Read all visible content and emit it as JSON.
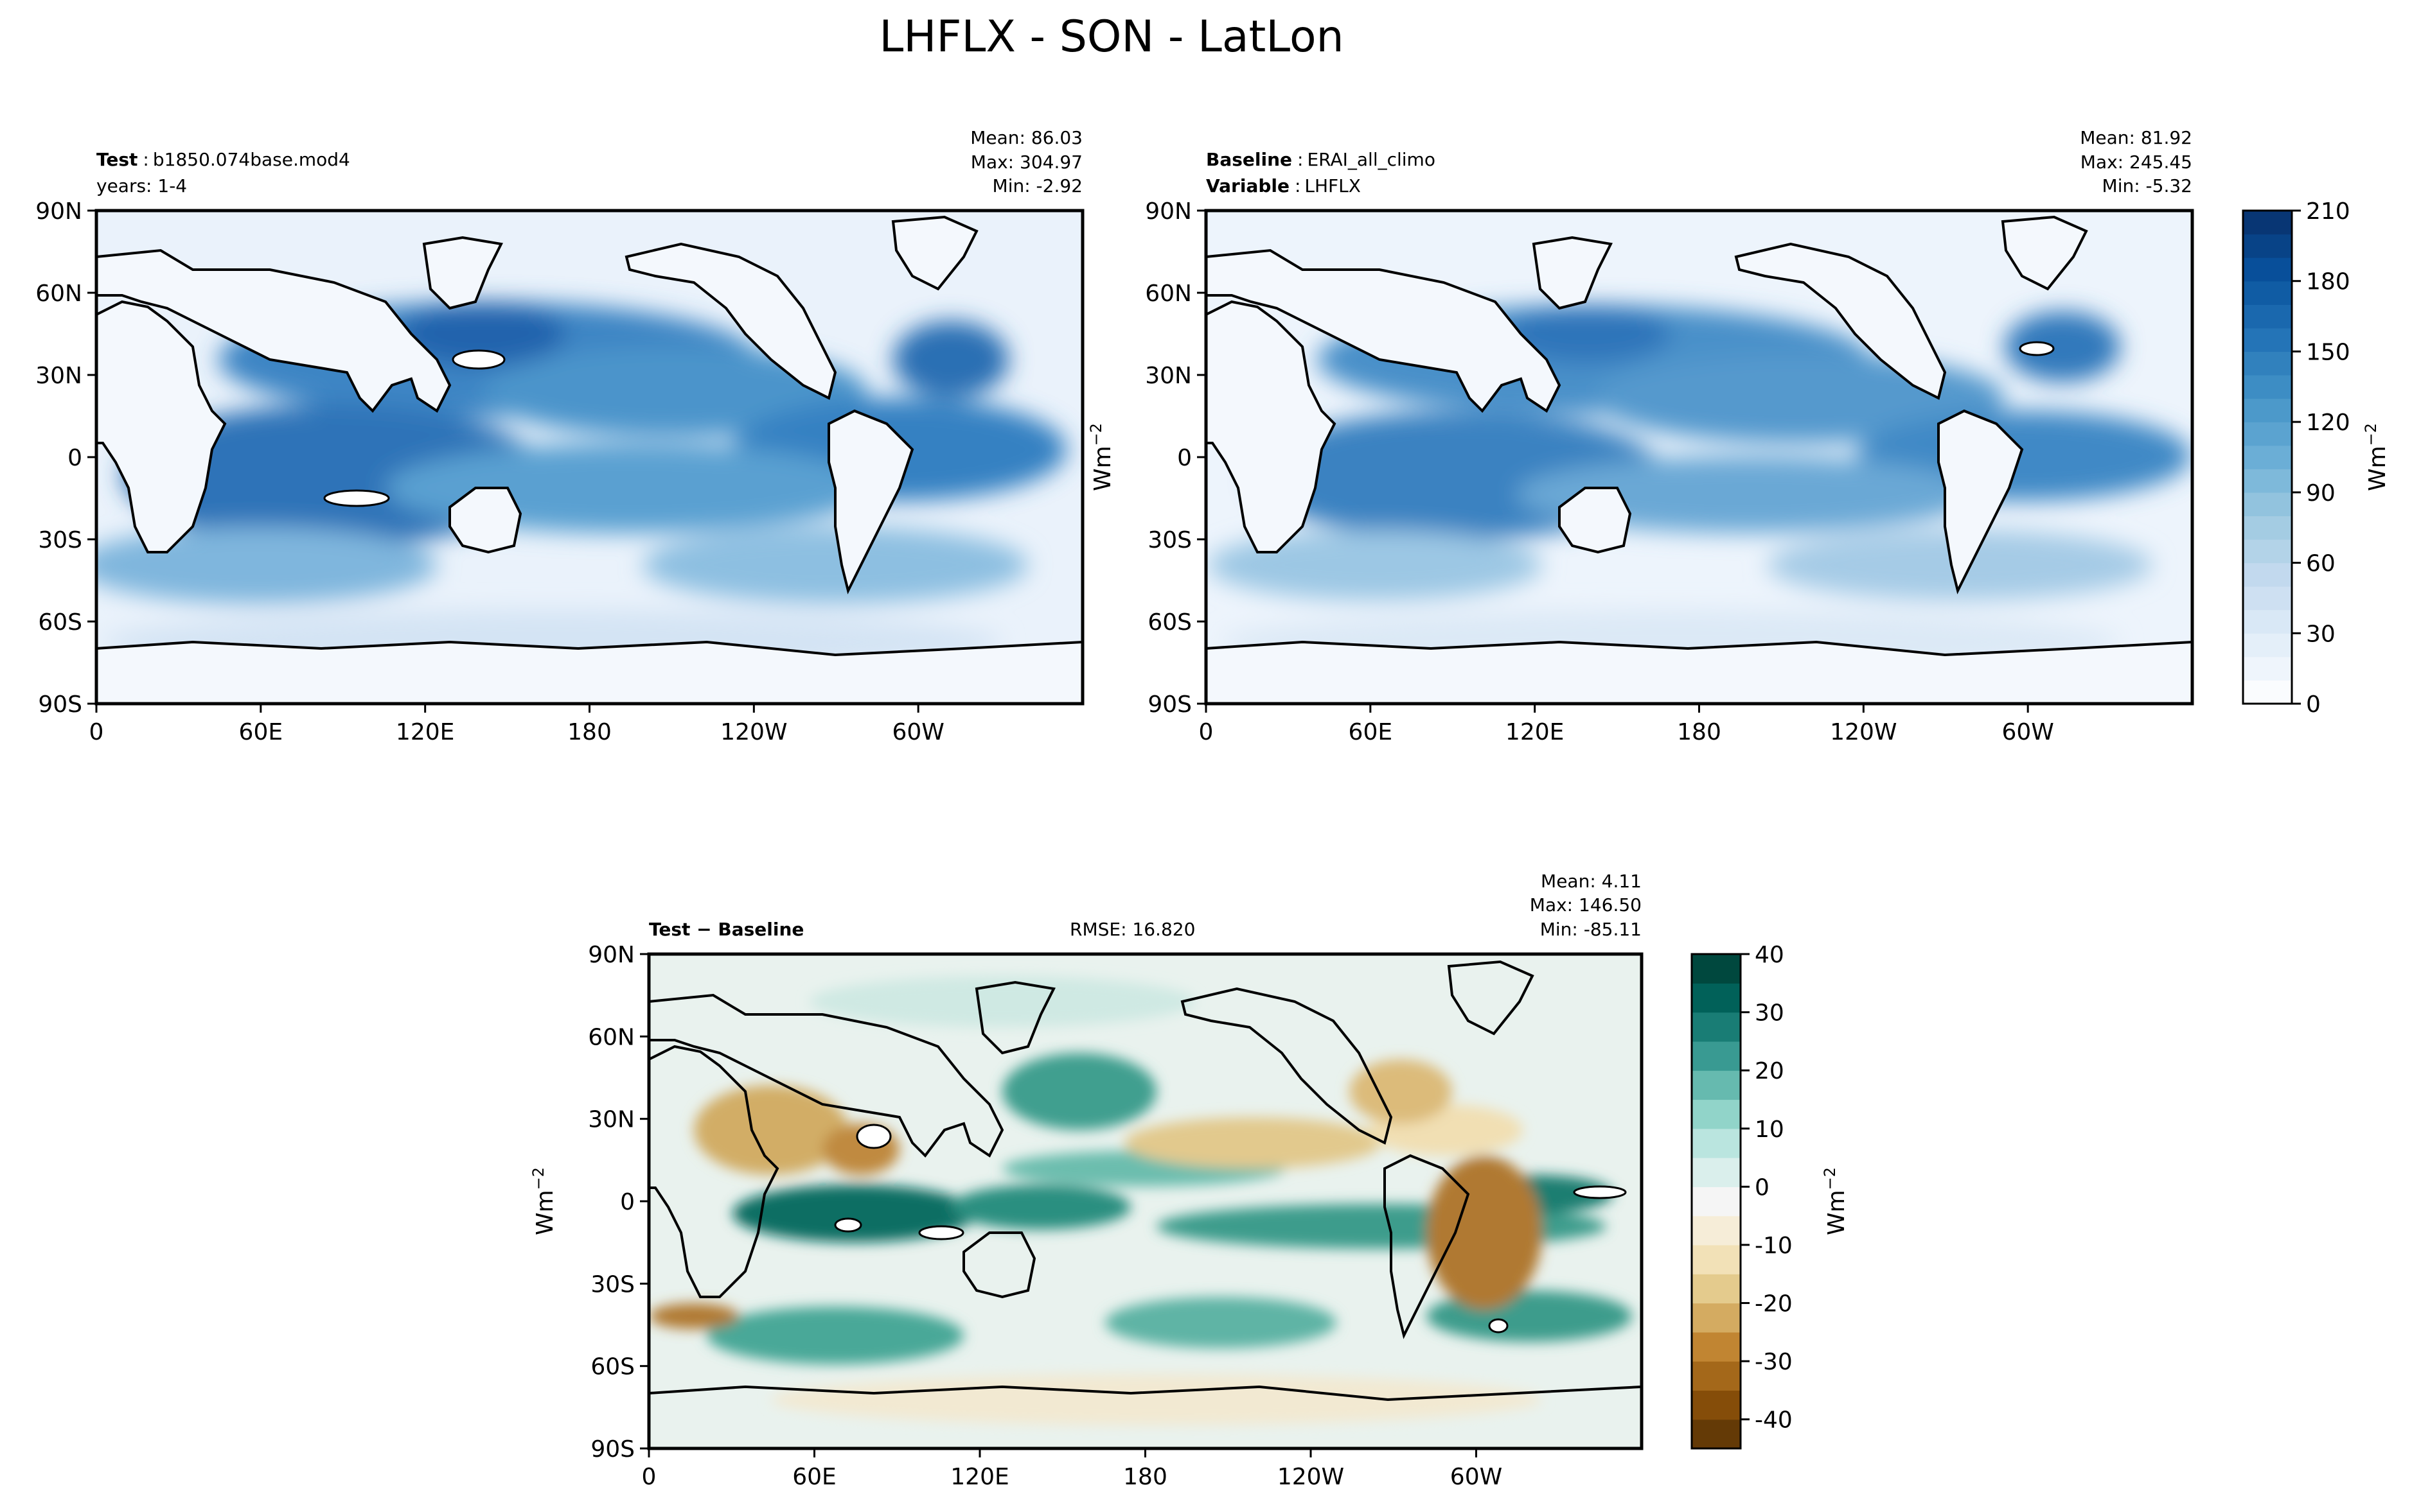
{
  "figure": {
    "title": "LHFLX - SON - LatLon"
  },
  "chart_data": [
    {
      "type": "heatmap",
      "panel": "test",
      "header_left": [
        {
          "bold": "Test",
          "text": "b1850.074base.mod4"
        },
        {
          "bold": "",
          "text": "years: 1-4"
        }
      ],
      "stats": [
        "Mean: 86.03",
        "Max: 304.97",
        "Min: -2.92"
      ],
      "x_ticks": [
        "0",
        "60E",
        "120E",
        "180",
        "120W",
        "60W"
      ],
      "y_ticks": [
        "90N",
        "60N",
        "30N",
        "0",
        "30S",
        "60S",
        "90S"
      ],
      "xlim": [
        0,
        360
      ],
      "ylim": [
        -90,
        90
      ],
      "colormap": "Blues"
    },
    {
      "type": "heatmap",
      "panel": "baseline",
      "header_left": [
        {
          "bold": "Baseline",
          "text": "ERAI_all_climo"
        },
        {
          "bold": "Variable",
          "text": "LHFLX"
        }
      ],
      "stats": [
        "Mean: 81.92",
        "Max: 245.45",
        "Min: -5.32"
      ],
      "x_ticks": [
        "0",
        "60E",
        "120E",
        "180",
        "120W",
        "60W"
      ],
      "y_ticks": [
        "90N",
        "60N",
        "30N",
        "0",
        "30S",
        "60S",
        "90S"
      ],
      "xlim": [
        0,
        360
      ],
      "ylim": [
        -90,
        90
      ],
      "colormap": "Blues",
      "colorbar": {
        "ticks": [
          "0",
          "30",
          "60",
          "90",
          "120",
          "150",
          "180",
          "210"
        ],
        "range": [
          0,
          210
        ],
        "levels": 21,
        "label": "Wm",
        "label_sup": "−2"
      },
      "side_label": "Wm",
      "side_label_sup": "−2"
    },
    {
      "type": "heatmap",
      "panel": "difference",
      "header_left": [
        {
          "bold": "Test − Baseline",
          "text": ""
        }
      ],
      "rmse": "RMSE: 16.820",
      "stats": [
        "Mean:  4.11",
        "Max: 146.50",
        "Min: -85.11"
      ],
      "x_ticks": [
        "0",
        "60E",
        "120E",
        "180",
        "120W",
        "60W"
      ],
      "y_ticks": [
        "90N",
        "60N",
        "30N",
        "0",
        "30S",
        "60S",
        "90S"
      ],
      "xlim": [
        0,
        360
      ],
      "ylim": [
        -90,
        90
      ],
      "colormap": "BrBG",
      "colorbar": {
        "ticks": [
          "-40",
          "-30",
          "-20",
          "-10",
          "0",
          "10",
          "20",
          "30",
          "40"
        ],
        "range": [
          -45,
          40
        ],
        "levels": 17,
        "label": "Wm",
        "label_sup": "−2"
      },
      "side_label": "Wm",
      "side_label_sup": "−2"
    }
  ]
}
